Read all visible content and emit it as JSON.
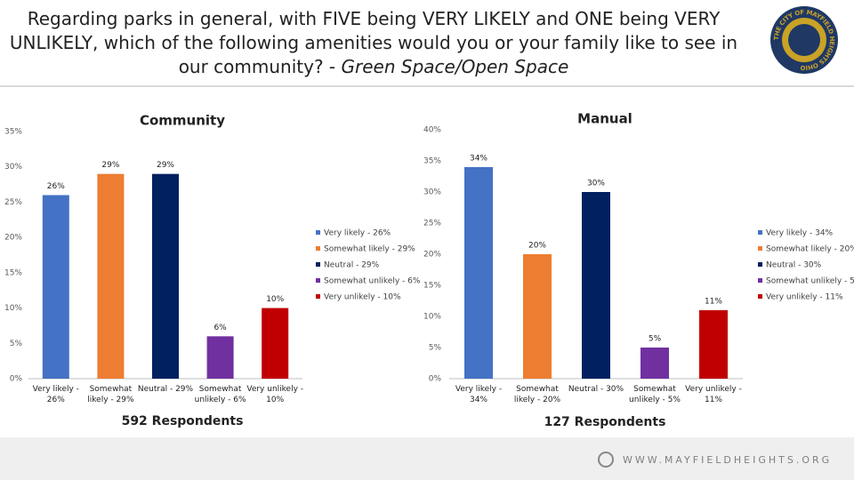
{
  "header": {
    "title": "Regarding parks in general, with FIVE being VERY LIKELY and ONE being VERY UNLIKELY, which of the following amenities would you or your family like to see in our community? - ",
    "title_emphasis": "Green Space/Open Space",
    "logo_text": "THE CITY OF MAYFIELD HEIGHTS OHIO"
  },
  "footer": {
    "website": "WWW.MAYFIELDHEIGHTS.ORG"
  },
  "chart_data": [
    {
      "type": "bar",
      "title": "Community",
      "caption": "592 Respondents",
      "categories": [
        "Very likely - 26%",
        "Somewhat likely - 29%",
        "Neutral - 29%",
        "Somewhat unlikely - 6%",
        "Very unlikely - 10%"
      ],
      "values": [
        26,
        29,
        29,
        6,
        10
      ],
      "value_labels": [
        "26%",
        "29%",
        "29%",
        "6%",
        "10%"
      ],
      "colors": [
        "#4472c4",
        "#ed7d31",
        "#002060",
        "#7030a0",
        "#c00000"
      ],
      "ylim": [
        0,
        35
      ],
      "yticks": [
        {
          "value": 0,
          "label": "0%"
        },
        {
          "value": 5,
          "label": "5%"
        },
        {
          "value": 10,
          "label": "10%"
        },
        {
          "value": 15,
          "label": "15%"
        },
        {
          "value": 20,
          "label": "20%"
        },
        {
          "value": 25,
          "label": "25%"
        },
        {
          "value": 30,
          "label": "30%"
        },
        {
          "value": 35,
          "label": "35%"
        }
      ],
      "legend": "right"
    },
    {
      "type": "bar",
      "title": "Manual",
      "caption": "127 Respondents",
      "categories": [
        "Very likely - 34%",
        "Somewhat likely - 20%",
        "Neutral - 30%",
        "Somewhat unlikely - 5%",
        "Very unlikely - 11%"
      ],
      "values": [
        34,
        20,
        30,
        5,
        11
      ],
      "value_labels": [
        "34%",
        "20%",
        "30%",
        "5%",
        "11%"
      ],
      "colors": [
        "#4472c4",
        "#ed7d31",
        "#002060",
        "#7030a0",
        "#c00000"
      ],
      "ylim": [
        0,
        40
      ],
      "yticks": [
        {
          "value": 0,
          "label": "0%"
        },
        {
          "value": 5,
          "label": "5%"
        },
        {
          "value": 10,
          "label": "10%"
        },
        {
          "value": 15,
          "label": "15%"
        },
        {
          "value": 20,
          "label": "20%"
        },
        {
          "value": 25,
          "label": "25%"
        },
        {
          "value": 30,
          "label": "30%"
        },
        {
          "value": 35,
          "label": "35%"
        },
        {
          "value": 40,
          "label": "40%"
        }
      ],
      "legend": "right"
    }
  ]
}
